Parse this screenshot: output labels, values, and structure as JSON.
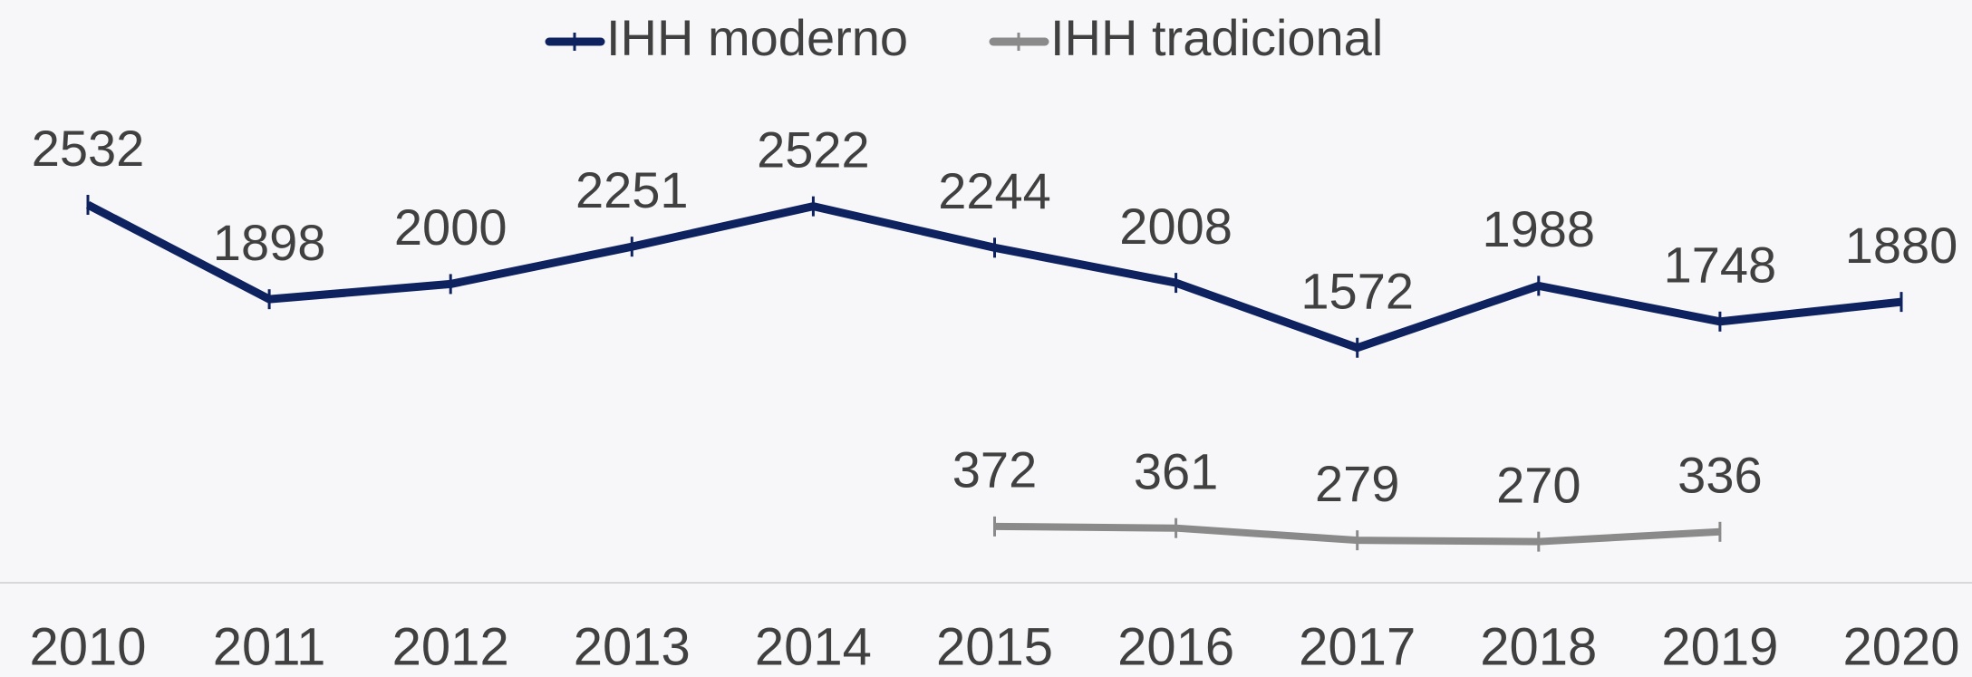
{
  "chart_data": {
    "type": "line",
    "categories": [
      "2010",
      "2011",
      "2012",
      "2013",
      "2014",
      "2015",
      "2016",
      "2017",
      "2018",
      "2019",
      "2020"
    ],
    "series": [
      {
        "name": "IHH moderno",
        "color": "#0e2260",
        "values": [
          2532,
          1898,
          2000,
          2251,
          2522,
          2244,
          2008,
          1572,
          1988,
          1748,
          1880
        ]
      },
      {
        "name": "IHH tradicional",
        "color": "#8a8a8a",
        "values": [
          null,
          null,
          null,
          null,
          null,
          372,
          361,
          279,
          270,
          336,
          null
        ]
      }
    ],
    "legend": "top"
  }
}
